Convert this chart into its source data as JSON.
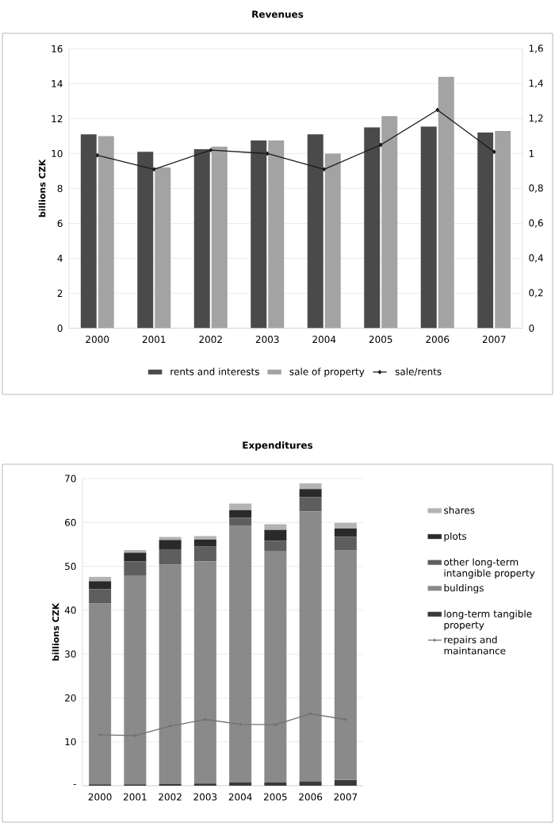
{
  "chart_data": [
    {
      "type": "bar",
      "title": "Revenues",
      "ylabel": "billions CZK",
      "categories": [
        "2000",
        "2001",
        "2002",
        "2003",
        "2004",
        "2005",
        "2006",
        "2007"
      ],
      "series": [
        {
          "name": "rents and  interests",
          "color": "#4a4a4a",
          "values": [
            11.1,
            10.1,
            10.25,
            10.75,
            11.1,
            11.5,
            11.55,
            11.2
          ]
        },
        {
          "name": "sale of property",
          "color": "#a3a3a3",
          "values": [
            11.0,
            9.2,
            10.4,
            10.75,
            10.0,
            12.15,
            14.4,
            11.3
          ]
        },
        {
          "name": "sale/rents",
          "type": "line",
          "axis": "y2",
          "color": "#1a1a1a",
          "values": [
            0.99,
            0.91,
            1.02,
            1.0,
            0.91,
            1.05,
            1.25,
            1.01
          ]
        }
      ],
      "ylim": [
        0,
        16
      ],
      "yticks": [
        0,
        2,
        4,
        6,
        8,
        10,
        12,
        14,
        16
      ],
      "y2lim": [
        0,
        1.6
      ],
      "y2ticks": [
        0,
        {
          "value": 0.2,
          "label": "0,2"
        },
        {
          "value": 0.4,
          "label": "0,4"
        },
        {
          "value": 0.6,
          "label": "0,6"
        },
        {
          "value": 0.8,
          "label": "0,8"
        },
        1,
        {
          "value": 1.2,
          "label": "1,2"
        },
        {
          "value": 1.4,
          "label": "1,4"
        },
        {
          "value": 1.6,
          "label": "1,6"
        }
      ],
      "grid": "y",
      "legend": "bottom",
      "marker": "diamond"
    },
    {
      "type": "bar",
      "title": "Expenditures",
      "ylabel": "billions CZK",
      "categories": [
        "2000",
        "2001",
        "2002",
        "2003",
        "2004",
        "2005",
        "2006",
        "2007"
      ],
      "stacked": true,
      "series": [
        {
          "name": "long-term tangible property",
          "color": "#3a3a3a",
          "values": [
            0.3,
            0.3,
            0.4,
            0.5,
            0.7,
            0.7,
            1.0,
            1.3
          ]
        },
        {
          "name": "buldings",
          "color": "#8a8a8a",
          "values": [
            41.2,
            47.5,
            50.0,
            50.6,
            58.5,
            52.7,
            61.5,
            52.3
          ]
        },
        {
          "name": "other long-term intangible property",
          "color": "#5e5e5e",
          "values": [
            3.3,
            3.3,
            3.5,
            3.4,
            1.9,
            2.4,
            3.3,
            3.1
          ]
        },
        {
          "name": "plots",
          "color": "#2a2a2a",
          "values": [
            1.8,
            2.0,
            2.1,
            1.6,
            1.7,
            2.5,
            1.8,
            1.9
          ]
        },
        {
          "name": "shares",
          "color": "#b3b3b3",
          "values": [
            1.0,
            0.6,
            0.7,
            0.8,
            1.5,
            1.3,
            1.3,
            1.3
          ]
        },
        {
          "name": "repairs and maintanance",
          "type": "line",
          "color": "#707070",
          "values": [
            11.6,
            11.4,
            13.6,
            15.1,
            14.0,
            13.9,
            16.4,
            15.1
          ]
        }
      ],
      "ylim": [
        0,
        70
      ],
      "yticks": [
        {
          "value": 0,
          "label": "-"
        },
        10,
        20,
        30,
        40,
        50,
        60,
        70
      ],
      "grid": "y",
      "legend": "right",
      "marker": "cross"
    }
  ]
}
